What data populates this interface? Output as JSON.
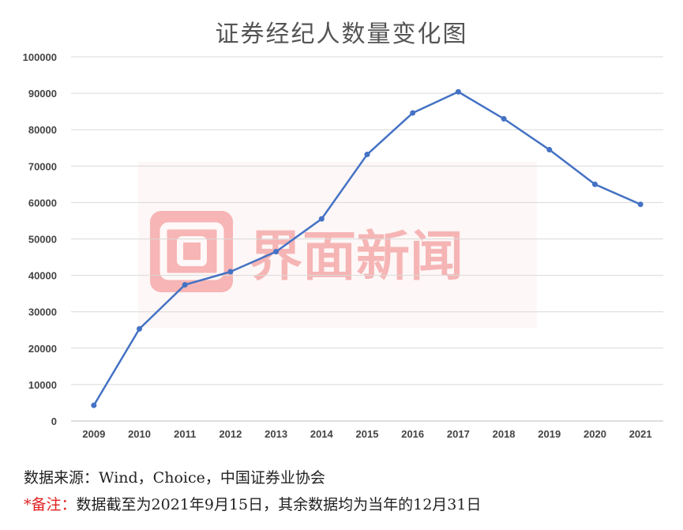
{
  "title": "证券经纪人数量变化图",
  "source_text": "数据来源：Wind，Choice，中国证券业协会",
  "note_label": "*备注：",
  "note_text": "数据截至为2021年9月15日，其余数据均为当年的12月31日",
  "watermark": {
    "text": "界面新闻",
    "icon": "jiemian-logo-icon",
    "color": "#f08080"
  },
  "colors": {
    "line": "#4472c4",
    "grid": "#d9d9d9",
    "axis_text": "#444444"
  },
  "chart_data": {
    "type": "line",
    "title": "证券经纪人数量变化图",
    "xlabel": "",
    "ylabel": "",
    "categories": [
      "2009",
      "2010",
      "2011",
      "2012",
      "2013",
      "2014",
      "2015",
      "2016",
      "2017",
      "2018",
      "2019",
      "2020",
      "2021"
    ],
    "series": [
      {
        "values": [
          4300,
          25300,
          37400,
          41000,
          46500,
          55500,
          73200,
          84600,
          90400,
          83000,
          74500,
          65000,
          59500
        ]
      }
    ],
    "ylim": [
      0,
      100000
    ],
    "yticks": [
      "0",
      "10000",
      "20000",
      "30000",
      "40000",
      "50000",
      "60000",
      "70000",
      "80000",
      "90000",
      "100000"
    ],
    "ytick_values": [
      0,
      10000,
      20000,
      30000,
      40000,
      50000,
      60000,
      70000,
      80000,
      90000,
      100000
    ],
    "grid": true,
    "legend": "none"
  }
}
